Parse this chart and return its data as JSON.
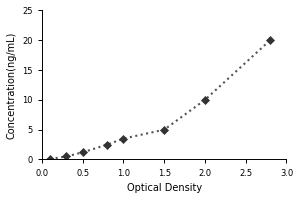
{
  "x_data": [
    0.1,
    0.3,
    0.5,
    0.8,
    1.0,
    1.5,
    2.0,
    2.8
  ],
  "y_data": [
    0.1,
    0.5,
    1.2,
    2.5,
    3.5,
    5.0,
    10.0,
    20.0
  ],
  "xlabel": "Optical Density",
  "ylabel": "Concentration(ng/mL)",
  "xlim": [
    0,
    3
  ],
  "ylim": [
    0,
    25
  ],
  "xticks": [
    0,
    0.5,
    1,
    1.5,
    2,
    2.5,
    3
  ],
  "yticks": [
    0,
    5,
    10,
    15,
    20,
    25
  ],
  "marker_color": "#333333",
  "line_color": "#555555",
  "marker": "D",
  "marker_size": 4,
  "line_style": ":",
  "line_width": 1.5,
  "bg_color": "#ffffff",
  "axes_color": "#000000",
  "label_fontsize": 7,
  "tick_fontsize": 6
}
